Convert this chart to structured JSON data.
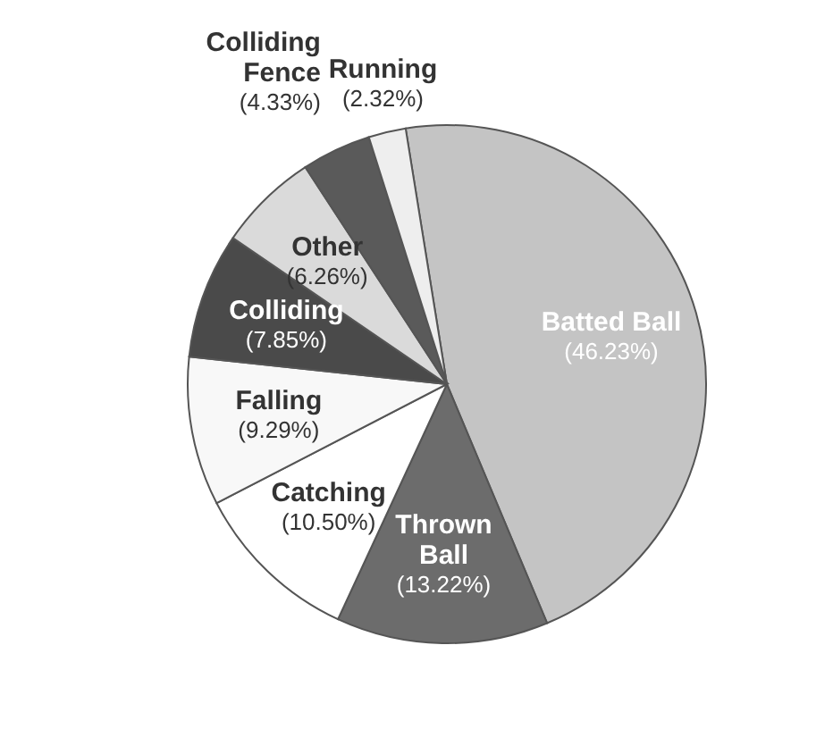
{
  "chart_data": {
    "type": "pie",
    "categories": [
      "Batted Ball",
      "Thrown Ball",
      "Catching",
      "Falling",
      "Colliding",
      "Other",
      "Colliding Fence",
      "Running"
    ],
    "values": [
      46.23,
      13.22,
      10.5,
      9.29,
      7.85,
      6.26,
      4.33,
      2.32
    ],
    "value_labels": [
      "(46.23%)",
      "(13.22%)",
      "(10.50%)",
      "(9.29%)",
      "(7.85%)",
      "(6.26%)",
      "(4.33%)",
      "(2.32%)"
    ],
    "colors": [
      "#c4c4c4",
      "#6c6c6c",
      "#ffffff",
      "#f8f8f8",
      "#4a4a4a",
      "#dadada",
      "#5a5a5a",
      "#eeeeee"
    ]
  }
}
